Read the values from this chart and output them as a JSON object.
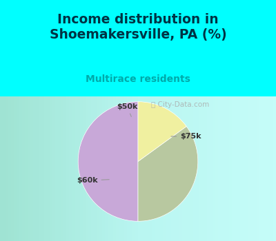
{
  "title": "Income distribution in\nShoemakersville, PA (%)",
  "subtitle": "Multirace residents",
  "slices": [
    {
      "label": "$75k",
      "value": 50,
      "color": "#c8a8d8"
    },
    {
      "label": "$60k",
      "value": 35,
      "color": "#b8c8a0"
    },
    {
      "label": "$50k",
      "value": 15,
      "color": "#f0f0a0"
    }
  ],
  "background_color": "#00ffff",
  "chart_bg_start": "#e8f4e8",
  "chart_bg_end": "#ffffff",
  "title_color": "#003344",
  "subtitle_color": "#00aaaa",
  "watermark": "City-Data.com",
  "startangle": 90
}
